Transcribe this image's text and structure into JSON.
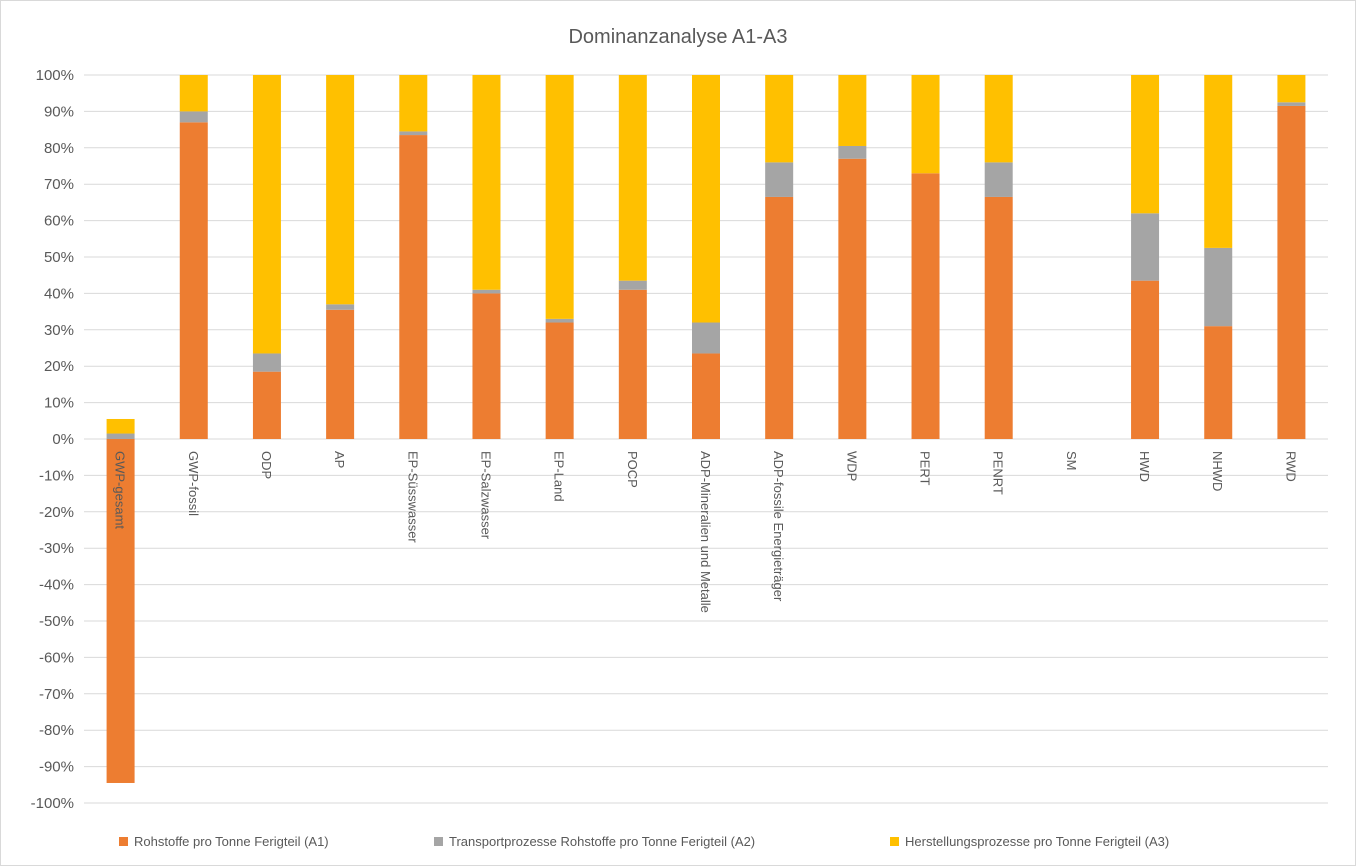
{
  "chart_data": {
    "type": "bar",
    "stacked": true,
    "title": "Dominanzanalyse A1-A3",
    "xlabel": "",
    "ylabel": "",
    "ylim": [
      -100,
      100
    ],
    "y_ticks": [
      "100%",
      "90%",
      "80%",
      "70%",
      "60%",
      "50%",
      "40%",
      "30%",
      "20%",
      "10%",
      "0%",
      "-10%",
      "-20%",
      "-30%",
      "-40%",
      "-50%",
      "-60%",
      "-70%",
      "-80%",
      "-90%",
      "-100%"
    ],
    "grid": true,
    "legend_position": "bottom",
    "categories": [
      "GWP-gesamt",
      "GWP-fossil",
      "ODP",
      "AP",
      "EP-Süsswasser",
      "EP-Salzwasser",
      "EP-Land",
      "POCP",
      "ADP-Mineralien und Metalle",
      "ADP-fossile Energieträger",
      "WDP",
      "PERT",
      "PENRT",
      "SM",
      "HWD",
      "NHWD",
      "RWD"
    ],
    "series": [
      {
        "name": "Rohstoffe pro Tonne Ferigteil (A1)",
        "color": "#ed7d31",
        "values": [
          -94.5,
          87,
          18.5,
          35.5,
          83.5,
          40,
          32,
          41,
          23.5,
          66.5,
          77,
          73,
          66.5,
          0,
          43.5,
          31,
          91.5
        ]
      },
      {
        "name": "Transportprozesse Rohstoffe pro Tonne Ferigteil (A2)",
        "color": "#a5a5a5",
        "values": [
          1.5,
          3,
          5,
          1.5,
          1,
          1,
          1,
          2.5,
          8.5,
          9.5,
          3.5,
          0,
          9.5,
          0,
          18.5,
          21.5,
          1
        ]
      },
      {
        "name": "Herstellungsprozesse pro Tonne Ferigteil (A3)",
        "color": "#ffc000",
        "values": [
          4,
          10,
          76.5,
          63,
          15.5,
          59,
          67,
          56.5,
          68,
          24,
          19.5,
          27,
          24,
          0,
          38,
          47.5,
          7.5
        ]
      }
    ]
  }
}
